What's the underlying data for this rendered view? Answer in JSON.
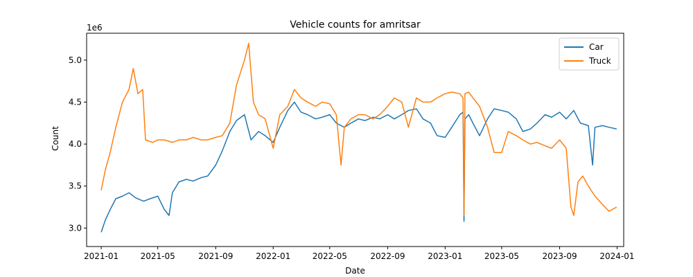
{
  "chart_data": {
    "type": "line",
    "title": "Vehicle counts for amritsar",
    "xlabel": "Date",
    "ylabel": "Count",
    "y_scale_label": "1e6",
    "xlim": [
      "2020-12-01",
      "2024-01-15"
    ],
    "ylim": [
      2.78,
      5.32
    ],
    "x_ticks": [
      "2021-01",
      "2021-05",
      "2021-09",
      "2022-01",
      "2022-05",
      "2022-09",
      "2023-01",
      "2023-05",
      "2023-09",
      "2024-01"
    ],
    "y_ticks": [
      "3.0",
      "3.5",
      "4.0",
      "4.5",
      "5.0"
    ],
    "y_tick_values": [
      3.0,
      3.5,
      4.0,
      4.5,
      5.0
    ],
    "grid": false,
    "legend_position": "top-right",
    "series": [
      {
        "name": "Car",
        "color": "#1f77b4",
        "points": [
          [
            "2021-01-01",
            2.95
          ],
          [
            "2021-01-10",
            3.1
          ],
          [
            "2021-01-20",
            3.22
          ],
          [
            "2021-02-01",
            3.35
          ],
          [
            "2021-02-15",
            3.38
          ],
          [
            "2021-03-01",
            3.42
          ],
          [
            "2021-03-15",
            3.36
          ],
          [
            "2021-04-01",
            3.32
          ],
          [
            "2021-04-15",
            3.35
          ],
          [
            "2021-05-01",
            3.38
          ],
          [
            "2021-05-15",
            3.22
          ],
          [
            "2021-05-25",
            3.15
          ],
          [
            "2021-06-01",
            3.42
          ],
          [
            "2021-06-15",
            3.55
          ],
          [
            "2021-07-01",
            3.58
          ],
          [
            "2021-07-15",
            3.56
          ],
          [
            "2021-08-01",
            3.6
          ],
          [
            "2021-08-15",
            3.62
          ],
          [
            "2021-09-01",
            3.75
          ],
          [
            "2021-09-15",
            3.92
          ],
          [
            "2021-10-01",
            4.15
          ],
          [
            "2021-10-15",
            4.28
          ],
          [
            "2021-11-01",
            4.35
          ],
          [
            "2021-11-15",
            4.05
          ],
          [
            "2021-12-01",
            4.15
          ],
          [
            "2021-12-15",
            4.1
          ],
          [
            "2022-01-01",
            4.02
          ],
          [
            "2022-01-15",
            4.2
          ],
          [
            "2022-02-01",
            4.4
          ],
          [
            "2022-02-15",
            4.5
          ],
          [
            "2022-03-01",
            4.38
          ],
          [
            "2022-03-15",
            4.35
          ],
          [
            "2022-04-01",
            4.3
          ],
          [
            "2022-04-15",
            4.32
          ],
          [
            "2022-05-01",
            4.35
          ],
          [
            "2022-05-15",
            4.25
          ],
          [
            "2022-06-01",
            4.2
          ],
          [
            "2022-06-15",
            4.25
          ],
          [
            "2022-07-01",
            4.3
          ],
          [
            "2022-07-15",
            4.28
          ],
          [
            "2022-08-01",
            4.32
          ],
          [
            "2022-08-15",
            4.3
          ],
          [
            "2022-09-01",
            4.35
          ],
          [
            "2022-09-15",
            4.3
          ],
          [
            "2022-10-01",
            4.35
          ],
          [
            "2022-10-15",
            4.4
          ],
          [
            "2022-11-01",
            4.42
          ],
          [
            "2022-11-15",
            4.3
          ],
          [
            "2022-12-01",
            4.25
          ],
          [
            "2022-12-15",
            4.1
          ],
          [
            "2023-01-01",
            4.08
          ],
          [
            "2023-01-15",
            4.2
          ],
          [
            "2023-02-01",
            4.35
          ],
          [
            "2023-02-08",
            4.38
          ],
          [
            "2023-02-10",
            3.08
          ],
          [
            "2023-02-12",
            4.3
          ],
          [
            "2023-02-20",
            4.35
          ],
          [
            "2023-03-01",
            4.25
          ],
          [
            "2023-03-15",
            4.1
          ],
          [
            "2023-04-01",
            4.3
          ],
          [
            "2023-04-15",
            4.42
          ],
          [
            "2023-05-01",
            4.4
          ],
          [
            "2023-05-15",
            4.38
          ],
          [
            "2023-06-01",
            4.3
          ],
          [
            "2023-06-15",
            4.15
          ],
          [
            "2023-07-01",
            4.18
          ],
          [
            "2023-07-15",
            4.25
          ],
          [
            "2023-08-01",
            4.35
          ],
          [
            "2023-08-15",
            4.32
          ],
          [
            "2023-09-01",
            4.38
          ],
          [
            "2023-09-15",
            4.3
          ],
          [
            "2023-10-01",
            4.4
          ],
          [
            "2023-10-15",
            4.25
          ],
          [
            "2023-11-01",
            4.22
          ],
          [
            "2023-11-10",
            3.75
          ],
          [
            "2023-11-15",
            4.2
          ],
          [
            "2023-12-01",
            4.22
          ],
          [
            "2023-12-15",
            4.2
          ],
          [
            "2023-12-31",
            4.18
          ]
        ]
      },
      {
        "name": "Truck",
        "color": "#ff7f0e",
        "points": [
          [
            "2021-01-01",
            3.45
          ],
          [
            "2021-01-10",
            3.7
          ],
          [
            "2021-01-20",
            3.9
          ],
          [
            "2021-02-01",
            4.2
          ],
          [
            "2021-02-15",
            4.5
          ],
          [
            "2021-03-01",
            4.65
          ],
          [
            "2021-03-10",
            4.9
          ],
          [
            "2021-03-20",
            4.6
          ],
          [
            "2021-03-30",
            4.65
          ],
          [
            "2021-04-05",
            4.05
          ],
          [
            "2021-04-20",
            4.02
          ],
          [
            "2021-05-01",
            4.05
          ],
          [
            "2021-05-15",
            4.05
          ],
          [
            "2021-06-01",
            4.02
          ],
          [
            "2021-06-15",
            4.05
          ],
          [
            "2021-07-01",
            4.05
          ],
          [
            "2021-07-15",
            4.08
          ],
          [
            "2021-08-01",
            4.05
          ],
          [
            "2021-08-15",
            4.05
          ],
          [
            "2021-09-01",
            4.08
          ],
          [
            "2021-09-15",
            4.1
          ],
          [
            "2021-10-01",
            4.25
          ],
          [
            "2021-10-15",
            4.7
          ],
          [
            "2021-11-01",
            5.0
          ],
          [
            "2021-11-10",
            5.2
          ],
          [
            "2021-11-20",
            4.5
          ],
          [
            "2021-12-01",
            4.35
          ],
          [
            "2021-12-15",
            4.3
          ],
          [
            "2022-01-01",
            3.95
          ],
          [
            "2022-01-15",
            4.35
          ],
          [
            "2022-02-01",
            4.45
          ],
          [
            "2022-02-15",
            4.65
          ],
          [
            "2022-03-01",
            4.55
          ],
          [
            "2022-03-15",
            4.5
          ],
          [
            "2022-04-01",
            4.45
          ],
          [
            "2022-04-15",
            4.5
          ],
          [
            "2022-05-01",
            4.48
          ],
          [
            "2022-05-15",
            4.35
          ],
          [
            "2022-05-25",
            3.75
          ],
          [
            "2022-06-01",
            4.2
          ],
          [
            "2022-06-15",
            4.3
          ],
          [
            "2022-07-01",
            4.35
          ],
          [
            "2022-07-15",
            4.35
          ],
          [
            "2022-08-01",
            4.3
          ],
          [
            "2022-08-15",
            4.35
          ],
          [
            "2022-09-01",
            4.45
          ],
          [
            "2022-09-15",
            4.55
          ],
          [
            "2022-10-01",
            4.5
          ],
          [
            "2022-10-15",
            4.2
          ],
          [
            "2022-11-01",
            4.55
          ],
          [
            "2022-11-15",
            4.5
          ],
          [
            "2022-12-01",
            4.5
          ],
          [
            "2022-12-15",
            4.55
          ],
          [
            "2023-01-01",
            4.6
          ],
          [
            "2023-01-15",
            4.62
          ],
          [
            "2023-02-01",
            4.6
          ],
          [
            "2023-02-08",
            4.55
          ],
          [
            "2023-02-10",
            3.15
          ],
          [
            "2023-02-12",
            4.6
          ],
          [
            "2023-02-20",
            4.62
          ],
          [
            "2023-03-01",
            4.55
          ],
          [
            "2023-03-15",
            4.45
          ],
          [
            "2023-04-01",
            4.2
          ],
          [
            "2023-04-15",
            3.9
          ],
          [
            "2023-05-01",
            3.9
          ],
          [
            "2023-05-15",
            4.15
          ],
          [
            "2023-06-01",
            4.1
          ],
          [
            "2023-06-15",
            4.05
          ],
          [
            "2023-07-01",
            4.0
          ],
          [
            "2023-07-15",
            4.02
          ],
          [
            "2023-08-01",
            3.98
          ],
          [
            "2023-08-15",
            3.95
          ],
          [
            "2023-09-01",
            4.05
          ],
          [
            "2023-09-15",
            3.95
          ],
          [
            "2023-09-25",
            3.25
          ],
          [
            "2023-10-01",
            3.15
          ],
          [
            "2023-10-10",
            3.55
          ],
          [
            "2023-10-20",
            3.62
          ],
          [
            "2023-11-01",
            3.5
          ],
          [
            "2023-11-15",
            3.38
          ],
          [
            "2023-12-01",
            3.28
          ],
          [
            "2023-12-15",
            3.2
          ],
          [
            "2023-12-31",
            3.25
          ]
        ]
      }
    ]
  }
}
